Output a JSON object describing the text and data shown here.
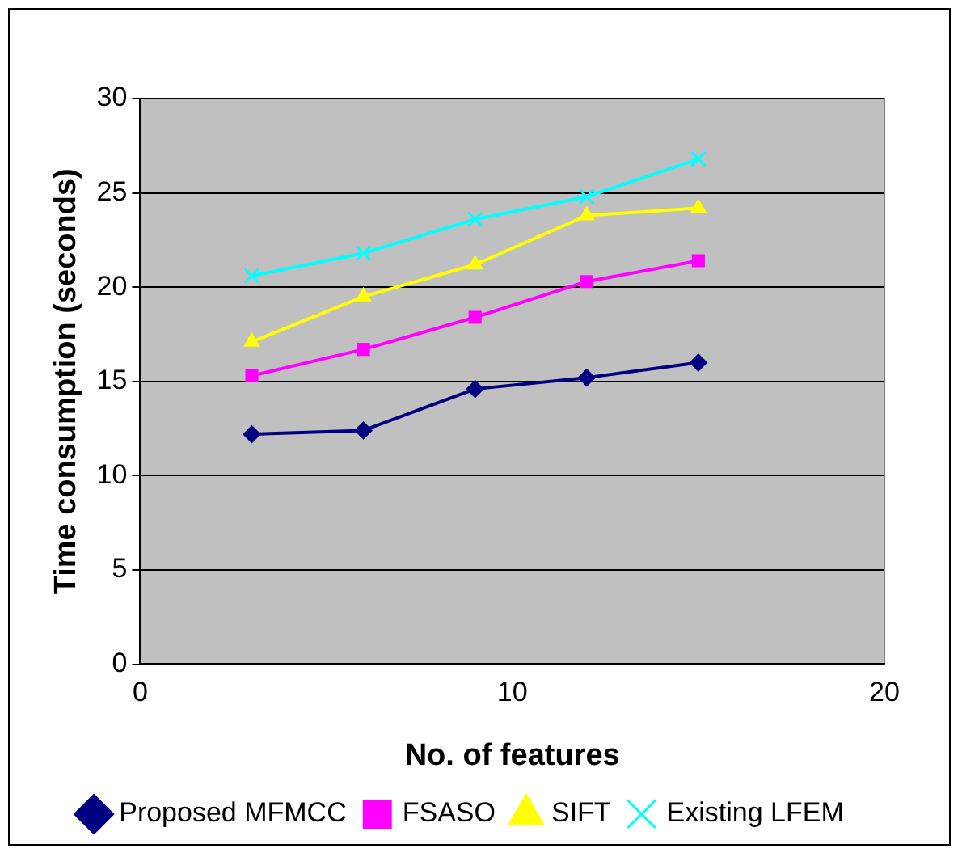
{
  "chart_data": {
    "type": "line",
    "xlabel": "No. of features",
    "ylabel": "Time consumption (seconds)",
    "xlim": [
      0,
      20
    ],
    "xticks": [
      0,
      10,
      20
    ],
    "ylim": [
      0,
      30
    ],
    "yticks": [
      0,
      5,
      10,
      15,
      20,
      25,
      30
    ],
    "grid": "y",
    "legend": "bottom",
    "series": [
      {
        "name": "Proposed MFMCC",
        "color": "#000080",
        "marker": "diamond",
        "x": [
          3,
          6,
          9,
          12,
          15
        ],
        "values": [
          12.2,
          12.4,
          14.6,
          15.2,
          16.0
        ]
      },
      {
        "name": "FSASO",
        "color": "#ff00ff",
        "marker": "square",
        "x": [
          3,
          6,
          9,
          12,
          15
        ],
        "values": [
          15.3,
          16.7,
          18.4,
          20.3,
          21.4
        ]
      },
      {
        "name": "SIFT",
        "color": "#ffff00",
        "marker": "triangle",
        "x": [
          3,
          6,
          9,
          12,
          15
        ],
        "values": [
          17.1,
          19.5,
          21.2,
          23.8,
          24.2
        ]
      },
      {
        "name": "Existing LFEM",
        "color": "#00ffff",
        "marker": "cross",
        "x": [
          3,
          6,
          9,
          12,
          15
        ],
        "values": [
          20.6,
          21.8,
          23.6,
          24.8,
          26.8
        ]
      }
    ]
  }
}
